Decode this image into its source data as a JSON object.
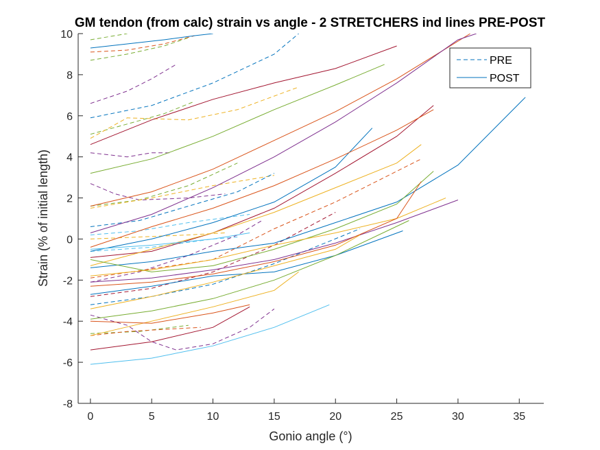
{
  "chart_data": {
    "type": "line",
    "title": "GM tendon (from calc) strain vs angle - 2 STRETCHERS ind lines PRE-POST",
    "xlabel": "Gonio angle (°)",
    "ylabel": "Strain (% of initial length)",
    "xlim": [
      -1,
      37
    ],
    "ylim": [
      -8,
      10
    ],
    "xticks": [
      0,
      5,
      10,
      15,
      20,
      25,
      30,
      35
    ],
    "yticks": [
      -8,
      -6,
      -4,
      -2,
      0,
      2,
      4,
      6,
      8,
      10
    ],
    "grid": false,
    "legend_position": "top-right",
    "legend": [
      {
        "label": "PRE",
        "style": "dashed",
        "color": "#0072BD"
      },
      {
        "label": "POST",
        "style": "solid",
        "color": "#0072BD"
      }
    ],
    "series": [
      {
        "group": "PRE",
        "color": "#77AC30",
        "points": [
          [
            0,
            9.7
          ],
          [
            2,
            9.9
          ],
          [
            3,
            10.0
          ]
        ]
      },
      {
        "group": "PRE",
        "color": "#D95319",
        "points": [
          [
            0,
            9.1
          ],
          [
            3,
            9.2
          ],
          [
            6,
            9.5
          ],
          [
            8.5,
            9.9
          ]
        ]
      },
      {
        "group": "PRE",
        "color": "#77AC30",
        "points": [
          [
            0,
            8.7
          ],
          [
            3,
            9.0
          ],
          [
            6,
            9.4
          ],
          [
            8,
            9.8
          ]
        ]
      },
      {
        "group": "PRE",
        "color": "#7E2F8E",
        "points": [
          [
            0,
            6.6
          ],
          [
            3,
            7.2
          ],
          [
            5,
            7.8
          ],
          [
            7,
            8.5
          ]
        ]
      },
      {
        "group": "PRE",
        "color": "#0072BD",
        "points": [
          [
            0,
            5.9
          ],
          [
            5,
            6.5
          ],
          [
            10,
            7.6
          ],
          [
            15,
            9.0
          ],
          [
            17,
            10.0
          ]
        ]
      },
      {
        "group": "PRE",
        "color": "#77AC30",
        "points": [
          [
            0,
            5.1
          ],
          [
            3,
            5.6
          ],
          [
            6,
            6.1
          ],
          [
            8.5,
            6.7
          ]
        ]
      },
      {
        "group": "PRE",
        "color": "#EDB120",
        "points": [
          [
            0,
            4.9
          ],
          [
            3,
            5.9
          ],
          [
            8,
            5.8
          ],
          [
            12,
            6.3
          ],
          [
            17,
            7.4
          ]
        ]
      },
      {
        "group": "PRE",
        "color": "#7E2F8E",
        "points": [
          [
            0,
            4.2
          ],
          [
            3,
            4.0
          ],
          [
            5,
            4.2
          ],
          [
            6.5,
            4.2
          ]
        ]
      },
      {
        "group": "PRE",
        "color": "#7E2F8E",
        "points": [
          [
            0,
            2.7
          ],
          [
            2,
            2.2
          ],
          [
            4,
            1.9
          ],
          [
            8,
            2.0
          ],
          [
            11,
            2.2
          ]
        ]
      },
      {
        "group": "PRE",
        "color": "#77AC30",
        "points": [
          [
            0,
            1.6
          ],
          [
            4,
            1.9
          ],
          [
            8,
            2.6
          ],
          [
            12,
            3.7
          ]
        ]
      },
      {
        "group": "PRE",
        "color": "#EDB120",
        "points": [
          [
            0,
            1.5
          ],
          [
            5,
            2.0
          ],
          [
            10,
            2.6
          ],
          [
            15,
            3.1
          ]
        ]
      },
      {
        "group": "PRE",
        "color": "#0072BD",
        "points": [
          [
            0,
            0.6
          ],
          [
            4,
            0.9
          ],
          [
            8,
            1.6
          ],
          [
            12,
            2.3
          ],
          [
            15,
            3.2
          ]
        ]
      },
      {
        "group": "PRE",
        "color": "#4DBEEE",
        "points": [
          [
            0,
            0.2
          ],
          [
            4,
            0.4
          ],
          [
            8,
            0.8
          ],
          [
            13,
            1.2
          ]
        ]
      },
      {
        "group": "PRE",
        "color": "#EDB120",
        "points": [
          [
            0,
            0.0
          ],
          [
            4,
            0.1
          ],
          [
            8,
            0.2
          ],
          [
            11,
            0.3
          ]
        ]
      },
      {
        "group": "PRE",
        "color": "#4DBEEE",
        "points": [
          [
            0,
            -0.6
          ],
          [
            5,
            -0.4
          ],
          [
            10,
            0.0
          ],
          [
            12,
            0.1
          ]
        ]
      },
      {
        "group": "PRE",
        "color": "#7E2F8E",
        "points": [
          [
            0,
            -2.1
          ],
          [
            4,
            -1.6
          ],
          [
            8,
            -0.8
          ],
          [
            12,
            0.2
          ],
          [
            14,
            0.9
          ]
        ]
      },
      {
        "group": "PRE",
        "color": "#D95319",
        "points": [
          [
            0,
            -1.9
          ],
          [
            10,
            -1.0
          ],
          [
            15,
            0.5
          ],
          [
            20,
            1.8
          ],
          [
            27,
            3.9
          ]
        ]
      },
      {
        "group": "PRE",
        "color": "#A2142F",
        "points": [
          [
            0,
            -2.8
          ],
          [
            5,
            -2.4
          ],
          [
            10,
            -1.6
          ],
          [
            15,
            -0.3
          ],
          [
            20,
            1.3
          ]
        ]
      },
      {
        "group": "PRE",
        "color": "#0072BD",
        "points": [
          [
            0,
            -3.2
          ],
          [
            5,
            -2.8
          ],
          [
            10,
            -2.2
          ],
          [
            15,
            -1.2
          ],
          [
            22,
            0.5
          ]
        ]
      },
      {
        "group": "PRE",
        "color": "#7E2F8E",
        "points": [
          [
            0,
            -3.7
          ],
          [
            3,
            -4.2
          ],
          [
            5,
            -5.0
          ],
          [
            7,
            -5.4
          ],
          [
            10,
            -5.1
          ],
          [
            13,
            -4.3
          ],
          [
            15,
            -3.4
          ]
        ]
      },
      {
        "group": "PRE",
        "color": "#77AC30",
        "points": [
          [
            0,
            -4.6
          ],
          [
            4,
            -4.5
          ],
          [
            8,
            -4.2
          ]
        ]
      },
      {
        "group": "PRE",
        "color": "#D95319",
        "points": [
          [
            0,
            -4.7
          ],
          [
            3,
            -4.5
          ],
          [
            6,
            -4.4
          ],
          [
            9,
            -4.3
          ]
        ]
      },
      {
        "group": "POST",
        "color": "#0072BD",
        "points": [
          [
            0,
            9.3
          ],
          [
            3,
            9.5
          ],
          [
            6,
            9.7
          ],
          [
            8.5,
            9.9
          ],
          [
            10,
            10.0
          ]
        ]
      },
      {
        "group": "POST",
        "color": "#A2142F",
        "points": [
          [
            0,
            4.6
          ],
          [
            5,
            5.8
          ],
          [
            10,
            6.8
          ],
          [
            15,
            7.6
          ],
          [
            20,
            8.3
          ],
          [
            25,
            9.4
          ]
        ]
      },
      {
        "group": "POST",
        "color": "#77AC30",
        "points": [
          [
            0,
            3.2
          ],
          [
            5,
            3.9
          ],
          [
            10,
            5.0
          ],
          [
            15,
            6.3
          ],
          [
            20,
            7.5
          ],
          [
            24,
            8.5
          ]
        ]
      },
      {
        "group": "POST",
        "color": "#D95319",
        "points": [
          [
            0,
            1.6
          ],
          [
            5,
            2.3
          ],
          [
            10,
            3.4
          ],
          [
            15,
            4.8
          ],
          [
            20,
            6.2
          ],
          [
            25,
            7.8
          ],
          [
            31,
            10.0
          ]
        ]
      },
      {
        "group": "POST",
        "color": "#7E2F8E",
        "points": [
          [
            0,
            0.3
          ],
          [
            5,
            1.2
          ],
          [
            10,
            2.5
          ],
          [
            15,
            4.0
          ],
          [
            20,
            5.7
          ],
          [
            25,
            7.6
          ],
          [
            30,
            9.7
          ],
          [
            31.5,
            10.0
          ]
        ]
      },
      {
        "group": "POST",
        "color": "#0072BD",
        "points": [
          [
            0,
            -0.6
          ],
          [
            5,
            0.0
          ],
          [
            10,
            0.8
          ],
          [
            15,
            1.8
          ],
          [
            20,
            3.5
          ],
          [
            23,
            5.4
          ]
        ]
      },
      {
        "group": "POST",
        "color": "#A2142F",
        "points": [
          [
            0,
            -0.9
          ],
          [
            5,
            -0.6
          ],
          [
            10,
            0.3
          ],
          [
            15,
            1.5
          ],
          [
            20,
            3.2
          ],
          [
            25,
            5.0
          ],
          [
            28,
            6.5
          ]
        ]
      },
      {
        "group": "POST",
        "color": "#D95319",
        "points": [
          [
            0,
            -0.4
          ],
          [
            5,
            0.6
          ],
          [
            10,
            1.5
          ],
          [
            15,
            2.6
          ],
          [
            20,
            3.9
          ],
          [
            25,
            5.3
          ],
          [
            28,
            6.3
          ]
        ]
      },
      {
        "group": "POST",
        "color": "#EDB120",
        "points": [
          [
            0,
            -1.3
          ],
          [
            5,
            -0.5
          ],
          [
            10,
            0.3
          ],
          [
            15,
            1.3
          ],
          [
            20,
            2.5
          ],
          [
            25,
            3.7
          ],
          [
            27,
            4.6
          ]
        ]
      },
      {
        "group": "POST",
        "color": "#4DBEEE",
        "points": [
          [
            0,
            -0.5
          ],
          [
            5,
            -0.3
          ],
          [
            10,
            0.0
          ],
          [
            13,
            0.3
          ]
        ]
      },
      {
        "group": "POST",
        "color": "#0072BD",
        "points": [
          [
            0,
            -1.4
          ],
          [
            5,
            -1.1
          ],
          [
            10,
            -0.6
          ],
          [
            15,
            -0.2
          ],
          [
            20,
            0.8
          ],
          [
            25,
            1.8
          ],
          [
            30,
            3.6
          ],
          [
            35.5,
            6.9
          ]
        ]
      },
      {
        "group": "POST",
        "color": "#77AC30",
        "points": [
          [
            0,
            -1.0
          ],
          [
            5,
            -1.6
          ],
          [
            10,
            -1.3
          ],
          [
            15,
            -0.5
          ],
          [
            20,
            0.5
          ],
          [
            25,
            1.7
          ],
          [
            28,
            3.3
          ]
        ]
      },
      {
        "group": "POST",
        "color": "#EDB120",
        "points": [
          [
            0,
            -1.8
          ],
          [
            5,
            -1.5
          ],
          [
            10,
            -1.0
          ],
          [
            15,
            -0.3
          ],
          [
            20,
            0.3
          ],
          [
            25,
            1.0
          ],
          [
            29,
            2.0
          ]
        ]
      },
      {
        "group": "POST",
        "color": "#7E2F8E",
        "points": [
          [
            0,
            -2.1
          ],
          [
            5,
            -1.9
          ],
          [
            10,
            -1.5
          ],
          [
            15,
            -1.0
          ],
          [
            20,
            -0.2
          ],
          [
            25,
            0.8
          ],
          [
            30,
            1.9
          ]
        ]
      },
      {
        "group": "POST",
        "color": "#D95319",
        "points": [
          [
            0,
            -2.3
          ],
          [
            5,
            -2.1
          ],
          [
            10,
            -1.7
          ],
          [
            15,
            -1.1
          ],
          [
            20,
            -0.3
          ],
          [
            25,
            1.0
          ],
          [
            27,
            2.8
          ]
        ]
      },
      {
        "group": "POST",
        "color": "#0072BD",
        "points": [
          [
            0,
            -2.7
          ],
          [
            5,
            -2.3
          ],
          [
            10,
            -1.8
          ],
          [
            15,
            -1.6
          ],
          [
            20,
            -0.8
          ],
          [
            25.5,
            0.4
          ]
        ]
      },
      {
        "group": "POST",
        "color": "#EDB120",
        "points": [
          [
            0,
            -3.4
          ],
          [
            5,
            -2.8
          ],
          [
            10,
            -2.1
          ],
          [
            15,
            -1.3
          ],
          [
            20,
            -0.5
          ],
          [
            22,
            0.2
          ]
        ]
      },
      {
        "group": "POST",
        "color": "#77AC30",
        "points": [
          [
            0,
            -3.9
          ],
          [
            5,
            -3.5
          ],
          [
            10,
            -2.9
          ],
          [
            15,
            -2.0
          ],
          [
            20,
            -0.8
          ],
          [
            26,
            0.9
          ]
        ]
      },
      {
        "group": "POST",
        "color": "#EDB120",
        "points": [
          [
            0,
            -4.7
          ],
          [
            5,
            -4.0
          ],
          [
            10,
            -3.3
          ],
          [
            15,
            -2.5
          ],
          [
            17,
            -1.6
          ]
        ]
      },
      {
        "group": "POST",
        "color": "#D95319",
        "points": [
          [
            0,
            -4.0
          ],
          [
            5,
            -4.1
          ],
          [
            10,
            -3.6
          ],
          [
            13,
            -3.2
          ]
        ]
      },
      {
        "group": "POST",
        "color": "#A2142F",
        "points": [
          [
            0,
            -5.4
          ],
          [
            5,
            -5.0
          ],
          [
            10,
            -4.3
          ],
          [
            13,
            -3.3
          ]
        ]
      },
      {
        "group": "POST",
        "color": "#4DBEEE",
        "points": [
          [
            0,
            -6.1
          ],
          [
            5,
            -5.8
          ],
          [
            10,
            -5.2
          ],
          [
            15,
            -4.3
          ],
          [
            19.5,
            -3.2
          ]
        ]
      }
    ]
  }
}
